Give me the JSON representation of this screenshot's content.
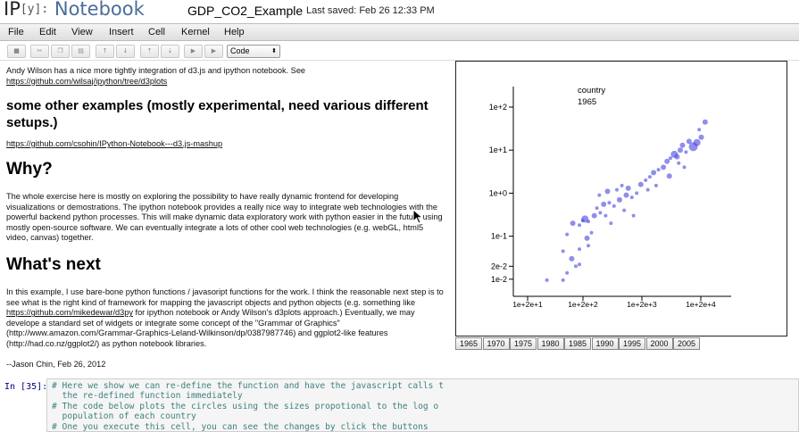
{
  "header": {
    "logo_ip": "IP",
    "logo_y": "[y]:",
    "logo_notebook": "Notebook",
    "notebook_name": "GDP_CO2_Example",
    "last_saved": "Last saved: Feb 26 12:33 PM"
  },
  "menu": [
    "File",
    "Edit",
    "View",
    "Insert",
    "Cell",
    "Kernel",
    "Help"
  ],
  "toolbar": {
    "buttons": [
      "save",
      "cut",
      "copy",
      "paste",
      "move-up",
      "move-down",
      "insert-above",
      "insert-below",
      "run",
      "run-all"
    ],
    "cell_type": "Code"
  },
  "text": {
    "intro": "Andy Wilson has a nice more tightly integration of d3.js and ipython notebook. See",
    "intro_link": "https://github.com/wilsaj/ipython/tree/d3plots",
    "examples_heading": "some other examples (mostly experimental, need various different setups.)",
    "examples_link": "https://github.com/csohin/IPython-Notebook---d3.js-mashup",
    "why_heading": "Why?",
    "why_body": "The whole exercise here is mostly on exploring the possibility to have really dynamic frontend for developing visualizations or demostrations. The ipython notebook provides a really nice way to integrate web technologies with the powerful backend python processes. This will make dynamic data exploratory work with python easier in the future using mostly open-source software. We can eventually integrate a lots of other cool web technologies (e.g. webGL, html5 video, canvas) together.",
    "next_heading": "What's next",
    "next_body_1": "In this example, I use bare-bone python functions / javasoript functions for the work. I think the reasonable next step is to see what is the right kind of framework for mapping the javascript objects and python objects (e.g. something like ",
    "next_link_1": "https://github.com/mikedewar/d3py",
    "next_body_2": " for ipython notebook or Andy Wilson's d3plots approach.) Eventually, we may develope a standard set of widgets or integrate some concept of the \"Grammar of Graphics\" (http://www.amazon.com/Grammar-Graphics-Leland-Wilkinson/dp/0387987746) and ggplot2-like features (http://had.co.nz/ggplot2/) as python notebook libraries.",
    "signature": "--Jason Chin, Feb 26, 2012"
  },
  "chart_data": {
    "type": "scatter",
    "title": "country",
    "subtitle": "1965",
    "xlabel": "",
    "ylabel": "",
    "x_scale": "log",
    "y_scale": "log",
    "x_tick_labels": [
      "1e+2e+1",
      "1e+2e+2",
      "1e+2e+3",
      "1e+2e+4"
    ],
    "y_tick_labels": [
      "1e+2",
      "1e+1",
      "1e+0",
      "1e-1",
      "2e-2",
      "1e-2"
    ],
    "xlim": [
      50,
      40000
    ],
    "ylim": [
      0.004,
      300
    ],
    "color": "#4444dd",
    "points": [
      {
        "x": 140,
        "y": 0.0095,
        "s": 2
      },
      {
        "x": 230,
        "y": 0.0095,
        "s": 2
      },
      {
        "x": 260,
        "y": 0.014,
        "s": 2
      },
      {
        "x": 300,
        "y": 0.03,
        "s": 3
      },
      {
        "x": 340,
        "y": 0.02,
        "s": 2
      },
      {
        "x": 380,
        "y": 0.022,
        "s": 2
      },
      {
        "x": 230,
        "y": 0.045,
        "s": 2
      },
      {
        "x": 380,
        "y": 0.05,
        "s": 2
      },
      {
        "x": 500,
        "y": 0.06,
        "s": 2
      },
      {
        "x": 480,
        "y": 0.09,
        "s": 3
      },
      {
        "x": 260,
        "y": 0.11,
        "s": 2
      },
      {
        "x": 310,
        "y": 0.2,
        "s": 3
      },
      {
        "x": 380,
        "y": 0.18,
        "s": 2
      },
      {
        "x": 420,
        "y": 0.23,
        "s": 2
      },
      {
        "x": 450,
        "y": 0.25,
        "s": 4
      },
      {
        "x": 500,
        "y": 0.22,
        "s": 2
      },
      {
        "x": 600,
        "y": 0.3,
        "s": 3
      },
      {
        "x": 720,
        "y": 0.35,
        "s": 2
      },
      {
        "x": 650,
        "y": 0.45,
        "s": 2
      },
      {
        "x": 800,
        "y": 0.55,
        "s": 3
      },
      {
        "x": 950,
        "y": 0.6,
        "s": 2
      },
      {
        "x": 1100,
        "y": 0.5,
        "s": 2
      },
      {
        "x": 1300,
        "y": 0.7,
        "s": 3
      },
      {
        "x": 1500,
        "y": 0.4,
        "s": 2
      },
      {
        "x": 700,
        "y": 0.9,
        "s": 2
      },
      {
        "x": 900,
        "y": 1.1,
        "s": 3
      },
      {
        "x": 1200,
        "y": 1.2,
        "s": 2
      },
      {
        "x": 1400,
        "y": 1.5,
        "s": 2
      },
      {
        "x": 1700,
        "y": 1.3,
        "s": 3
      },
      {
        "x": 1900,
        "y": 0.8,
        "s": 2
      },
      {
        "x": 2200,
        "y": 1.0,
        "s": 2
      },
      {
        "x": 2500,
        "y": 1.6,
        "s": 3
      },
      {
        "x": 2900,
        "y": 2.0,
        "s": 2
      },
      {
        "x": 3300,
        "y": 2.4,
        "s": 2
      },
      {
        "x": 3700,
        "y": 3.0,
        "s": 3
      },
      {
        "x": 4300,
        "y": 3.5,
        "s": 2
      },
      {
        "x": 5000,
        "y": 4.0,
        "s": 3
      },
      {
        "x": 5600,
        "y": 5.5,
        "s": 3
      },
      {
        "x": 6200,
        "y": 6.5,
        "s": 2
      },
      {
        "x": 7000,
        "y": 8.0,
        "s": 4
      },
      {
        "x": 7600,
        "y": 7.0,
        "s": 3
      },
      {
        "x": 8400,
        "y": 10.0,
        "s": 3
      },
      {
        "x": 9000,
        "y": 13.0,
        "s": 3
      },
      {
        "x": 10000,
        "y": 9.0,
        "s": 2
      },
      {
        "x": 11000,
        "y": 16.0,
        "s": 3
      },
      {
        "x": 12500,
        "y": 12.0,
        "s": 5
      },
      {
        "x": 14000,
        "y": 15.0,
        "s": 4
      },
      {
        "x": 16000,
        "y": 20.0,
        "s": 3
      },
      {
        "x": 18000,
        "y": 45.0,
        "s": 3
      },
      {
        "x": 15000,
        "y": 30.0,
        "s": 2
      },
      {
        "x": 1000,
        "y": 0.2,
        "s": 2
      },
      {
        "x": 2000,
        "y": 0.3,
        "s": 2
      },
      {
        "x": 4000,
        "y": 1.5,
        "s": 2
      },
      {
        "x": 6000,
        "y": 2.5,
        "s": 3
      },
      {
        "x": 8000,
        "y": 5.0,
        "s": 2
      },
      {
        "x": 9500,
        "y": 4.0,
        "s": 2
      },
      {
        "x": 550,
        "y": 0.12,
        "s": 2
      },
      {
        "x": 850,
        "y": 0.3,
        "s": 2
      },
      {
        "x": 1600,
        "y": 0.9,
        "s": 3
      },
      {
        "x": 3100,
        "y": 1.2,
        "s": 2
      }
    ]
  },
  "years": [
    "1965",
    "1970",
    "1975",
    "1980",
    "1985",
    "1990",
    "1995",
    "2000",
    "2005"
  ],
  "code_cell": {
    "prompt": "In [35]:",
    "lines": [
      "# Here we show we can re-define the function and have the javascript calls t",
      "  the re-defined function immediately",
      "# The code below plots the circles using the sizes propotional to the log o",
      "  population of each country",
      "# One you execute this cell, you can see the changes by click the buttons"
    ]
  }
}
